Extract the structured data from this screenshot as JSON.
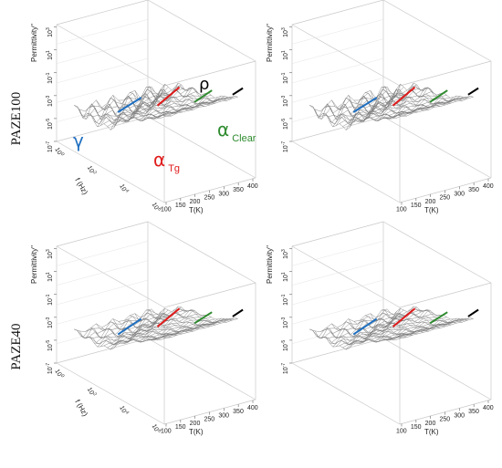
{
  "row_labels": [
    "PAZE100",
    "PAZE40"
  ],
  "colors": {
    "gamma": "#1f6fc0",
    "alpha_tg": "#e01b1b",
    "alpha_clear": "#2e8b2e",
    "rho": "#000000",
    "mesh": "#7a7a7a",
    "box": "#c8c8c8"
  },
  "chart_data": [
    {
      "type": "surface",
      "row": "PAZE100",
      "zlabel": "Permittivity\"",
      "ylabel": "f (Hz)",
      "xlabel": "T(K)",
      "x_ticks": [
        "100",
        "150",
        "200",
        "250",
        "300",
        "350",
        "400"
      ],
      "y_ticks": [
        "10^0",
        "10^2",
        "10^4",
        "10^6"
      ],
      "z_ticks": [
        "10^-7",
        "10^-5",
        "10^-3",
        "10^-1",
        "10^1",
        "10^3"
      ],
      "annotations": [
        {
          "key": "gamma",
          "symbol": "γ",
          "sub": ""
        },
        {
          "key": "alpha_tg",
          "symbol": "α",
          "sub": "Tg"
        },
        {
          "key": "alpha_clear",
          "symbol": "α",
          "sub": "Clear"
        },
        {
          "key": "rho",
          "symbol": "ρ",
          "sub": ""
        }
      ]
    },
    {
      "type": "surface",
      "row": "PAZE100",
      "zlabel": "Permittivity\"",
      "ylabel": "",
      "xlabel": "T(K)",
      "x_ticks": [
        "100",
        "150",
        "200",
        "250",
        "300",
        "350",
        "400"
      ],
      "y_ticks": [],
      "z_ticks": [
        "10^-7",
        "10^-5",
        "10^-3",
        "10^-1",
        "10^1",
        "10^3"
      ],
      "annotations": []
    },
    {
      "type": "surface",
      "row": "PAZE40",
      "zlabel": "Permittivity\"",
      "ylabel": "f (Hz)",
      "xlabel": "T(K)",
      "x_ticks": [
        "100",
        "150",
        "200",
        "250",
        "300",
        "350",
        "400"
      ],
      "y_ticks": [
        "10^0",
        "10^2",
        "10^4",
        "10^6"
      ],
      "z_ticks": [
        "10^-7",
        "10^-5",
        "10^-3",
        "10^-1",
        "10^1",
        "10^3"
      ],
      "annotations": []
    },
    {
      "type": "surface",
      "row": "PAZE40",
      "zlabel": "Permittivity\"",
      "ylabel": "",
      "xlabel": "T(K)",
      "x_ticks": [
        "100",
        "150",
        "200",
        "250",
        "300",
        "350",
        "400"
      ],
      "y_ticks": [],
      "z_ticks": [
        "10^-7",
        "10^-5",
        "10^-3",
        "10^-1",
        "10^1",
        "10^3"
      ],
      "annotations": []
    }
  ]
}
